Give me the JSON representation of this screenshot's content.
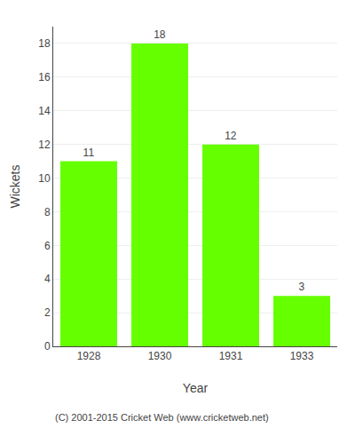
{
  "chart_data": {
    "type": "bar",
    "categories": [
      "1928",
      "1930",
      "1931",
      "1933"
    ],
    "values": [
      11,
      18,
      12,
      3
    ],
    "color": "#66ff00",
    "xlabel": "Year",
    "ylabel": "Wickets",
    "ylim": [
      0,
      19
    ],
    "yticks": [
      0,
      2,
      4,
      6,
      8,
      10,
      12,
      14,
      16,
      18
    ],
    "grid": true,
    "data_labels": true,
    "annotations": [
      "(C) 2001-2015 Cricket Web (www.cricketweb.net)"
    ]
  }
}
